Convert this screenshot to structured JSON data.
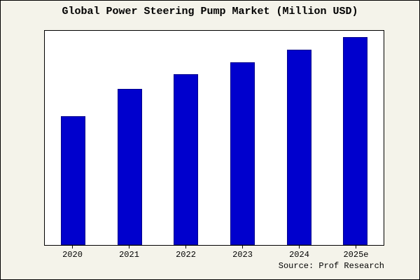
{
  "title": "Global Power Steering Pump Market (Million USD)",
  "source": "Source: Prof Research",
  "colors": {
    "background": "#f4f3ea",
    "plot_background": "#ffffff",
    "bar_fill": "#0000cd",
    "bar_edge": "#00008b",
    "frame": "#000000"
  },
  "chart_data": {
    "type": "bar",
    "title": "Global Power Steering Pump Market (Million USD)",
    "categories": [
      "2020",
      "2021",
      "2022",
      "2023",
      "2024",
      "2025e"
    ],
    "values": [
      62,
      75,
      82,
      88,
      94,
      100
    ],
    "xlabel": "",
    "ylabel": "",
    "ylim": [
      0,
      103
    ],
    "grid": false,
    "legend": "none",
    "annotation": "Source: Prof Research"
  }
}
